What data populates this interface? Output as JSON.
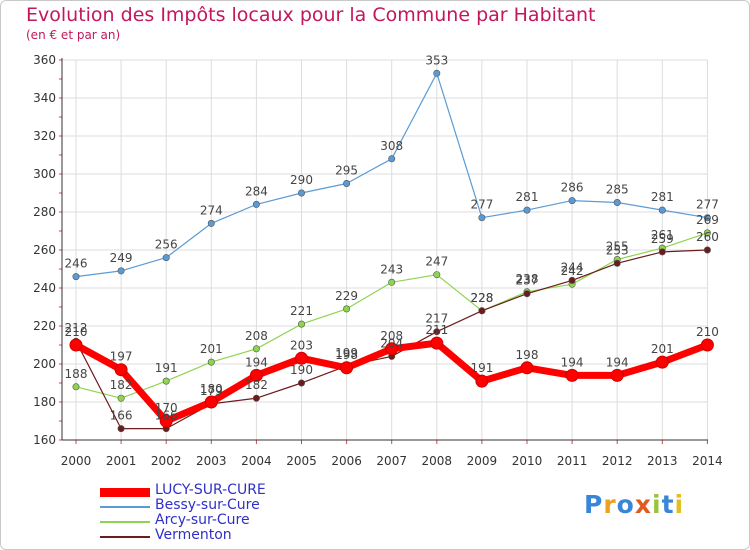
{
  "title": "Evolution des Impôts locaux pour la Commune par Habitant",
  "subtitle": "(en € et par an)",
  "logo": {
    "text": "Proxiti",
    "colors": [
      "#3a86d6",
      "#f0a020",
      "#3a86d6",
      "#e05a20",
      "#9ac43c",
      "#3a86d6",
      "#e0c020"
    ]
  },
  "chart_data": {
    "type": "line",
    "title": "Evolution des Impôts locaux pour la Commune par Habitant",
    "subtitle": "(en € et par an)",
    "xlabel": "",
    "ylabel": "",
    "ylim": [
      160,
      360
    ],
    "yticks": [
      160,
      180,
      200,
      220,
      240,
      260,
      280,
      300,
      320,
      340,
      360
    ],
    "categories": [
      "2000",
      "2001",
      "2002",
      "2003",
      "2004",
      "2005",
      "2006",
      "2007",
      "2008",
      "2009",
      "2010",
      "2011",
      "2012",
      "2013",
      "2014"
    ],
    "grid": true,
    "legend_position": "bottom-left",
    "series": [
      {
        "name": "Bessy-sur-Cure",
        "color": "#5b9bd5",
        "values": [
          246,
          249,
          256,
          274,
          284,
          290,
          295,
          308,
          353,
          277,
          281,
          286,
          285,
          281,
          277
        ],
        "labels": [
          "246",
          "249",
          "256",
          "274",
          "284",
          "290",
          "295",
          "308",
          "353",
          "277",
          "281",
          "286",
          "285",
          "281",
          "277"
        ]
      },
      {
        "name": "Arcy-sur-Cure",
        "color": "#8fd44f",
        "values": [
          188,
          182,
          191,
          201,
          208,
          221,
          229,
          243,
          247,
          228,
          238,
          242,
          255,
          261,
          269
        ],
        "labels": [
          "188",
          "182",
          "191",
          "201",
          "208",
          "221",
          "229",
          "243",
          "247",
          "228",
          "238",
          "242",
          "255",
          "261",
          "269"
        ]
      },
      {
        "name": "Vermenton",
        "color": "#6b1c1c",
        "values": [
          212,
          166,
          166,
          179,
          182,
          190,
          199,
          204,
          217,
          228,
          237,
          244,
          253,
          259,
          260
        ],
        "labels": [
          "212",
          "166",
          "166",
          "179",
          "182",
          "190",
          "199",
          "204",
          "217",
          "228",
          "237",
          "244",
          "253",
          "259",
          "260"
        ]
      },
      {
        "name": "LUCY-SUR-CURE",
        "color": "#ff0000",
        "values": [
          210,
          197,
          170,
          180,
          194,
          203,
          198,
          208,
          211,
          191,
          198,
          194,
          194,
          201,
          210
        ],
        "labels": [
          "210",
          "197",
          "170",
          "180",
          "194",
          "203",
          "198",
          "208",
          "211",
          "191",
          "198",
          "194",
          "194",
          "201",
          "210"
        ]
      }
    ],
    "legend": [
      "LUCY-SUR-CURE",
      "Bessy-sur-Cure",
      "Arcy-sur-Cure",
      "Vermenton"
    ]
  }
}
